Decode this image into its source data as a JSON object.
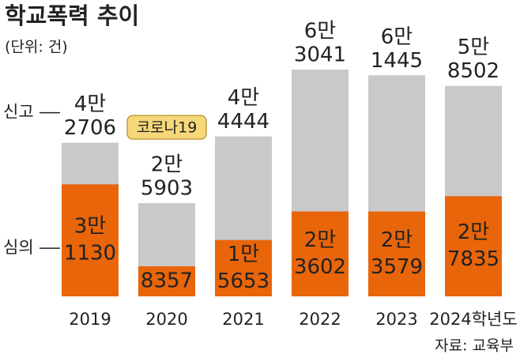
{
  "chart_data": {
    "type": "bar",
    "title": "학교폭력 추이",
    "subtitle": "(단위: 건)",
    "categories": [
      "2019",
      "2020",
      "2021",
      "2022",
      "2023",
      "2024학년도"
    ],
    "series": [
      {
        "name": "신고",
        "color": "#c9c9c9",
        "values": [
          42706,
          25903,
          44444,
          63041,
          61445,
          58502
        ],
        "value_labels": [
          [
            "4만",
            "2706"
          ],
          [
            "2만",
            "5903"
          ],
          [
            "4만",
            "4444"
          ],
          [
            "6만",
            "3041"
          ],
          [
            "6만",
            "1445"
          ],
          [
            "5만",
            "8502"
          ]
        ]
      },
      {
        "name": "심의",
        "color": "#e8650a",
        "values": [
          31130,
          8357,
          15653,
          23602,
          23579,
          27835
        ],
        "value_labels": [
          [
            "3만",
            "1130"
          ],
          [
            "8357"
          ],
          [
            "1만",
            "5653"
          ],
          [
            "2만",
            "3602"
          ],
          [
            "2만",
            "3579"
          ],
          [
            "2만",
            "7835"
          ]
        ]
      }
    ],
    "annotation": "코로나19",
    "source": "자료: 교육부"
  }
}
